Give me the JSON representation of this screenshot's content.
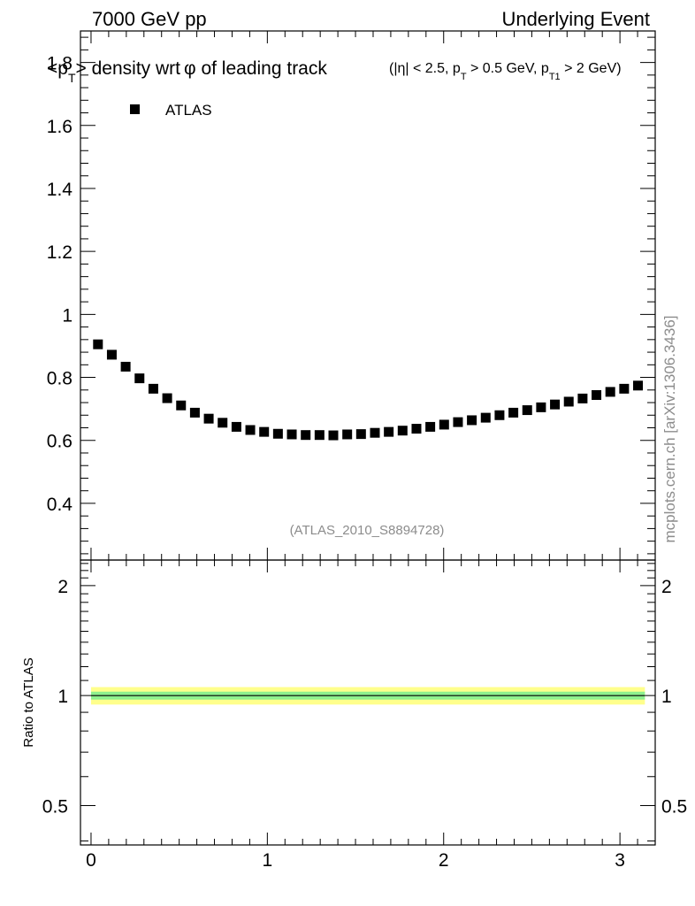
{
  "header": {
    "left": "7000 GeV pp",
    "right": "Underlying Event"
  },
  "plot_title": {
    "main_prefix": "<p",
    "main_sub": "T",
    "main_suffix": "> density wrt",
    "phi": "φ",
    "main_tail": " of leading track",
    "cuts_a": "(|η| < 2.5, p",
    "cuts_sub1": "T",
    "cuts_b": " > 0.5 GeV, p",
    "cuts_sub2": "T1",
    "cuts_c": " > 2 GeV)"
  },
  "analysis_id": "(ATLAS_2010_S8894728)",
  "side_label": "mcplots.cern.ch [arXiv:1306.3436]",
  "ratio_ylabel": "Ratio to ATLAS",
  "colors": {
    "marker": "#000000",
    "band_inner": "#8ef08e",
    "band_outer": "#ffff8c",
    "frame": "#000000"
  },
  "chart_data": [
    {
      "type": "scatter",
      "panel": "main",
      "xlim": [
        -0.06,
        3.2
      ],
      "ylim": [
        0.22,
        1.9
      ],
      "yticks": [
        0.4,
        0.6,
        0.8,
        1,
        1.2,
        1.4,
        1.6,
        1.8
      ],
      "ytick_labels": [
        "0.4",
        "0.6",
        "0.8",
        "1",
        "1.2",
        "1.4",
        "1.6",
        "1.8"
      ],
      "legend_position": "top-left",
      "series": [
        {
          "name": "ATLAS",
          "marker": "square",
          "x": [
            0.0393,
            0.1178,
            0.1963,
            0.2749,
            0.3534,
            0.432,
            0.5105,
            0.589,
            0.6676,
            0.7461,
            0.8247,
            0.9032,
            0.9817,
            1.0603,
            1.1388,
            1.2174,
            1.2959,
            1.3744,
            1.453,
            1.5315,
            1.6101,
            1.6886,
            1.7671,
            1.8457,
            1.9242,
            2.0028,
            2.0813,
            2.1598,
            2.2384,
            2.3169,
            2.3955,
            2.474,
            2.5525,
            2.6311,
            2.7096,
            2.7882,
            2.8667,
            2.9452,
            3.0238,
            3.1023
          ],
          "y": [
            0.905,
            0.872,
            0.834,
            0.797,
            0.764,
            0.734,
            0.711,
            0.688,
            0.669,
            0.656,
            0.643,
            0.633,
            0.627,
            0.621,
            0.619,
            0.617,
            0.617,
            0.616,
            0.619,
            0.62,
            0.624,
            0.627,
            0.631,
            0.637,
            0.643,
            0.65,
            0.658,
            0.664,
            0.672,
            0.68,
            0.688,
            0.696,
            0.705,
            0.714,
            0.723,
            0.733,
            0.744,
            0.754,
            0.764,
            0.774
          ]
        }
      ]
    },
    {
      "type": "line",
      "panel": "ratio",
      "ylabel": "Ratio to ATLAS",
      "xlim": [
        -0.06,
        3.2
      ],
      "ylim": [
        0.39,
        2.35
      ],
      "log_y": true,
      "yticks": [
        0.5,
        1,
        2
      ],
      "ytick_labels": [
        "0.5",
        "1",
        "2"
      ],
      "xticks": [
        0,
        1,
        2,
        3
      ],
      "xtick_labels": [
        "0",
        "1",
        "2",
        "3"
      ],
      "series": [
        {
          "name": "",
          "x": [
            0.0,
            3.1416
          ],
          "y": [
            1.0,
            1.0
          ]
        }
      ],
      "bands": [
        {
          "level": "outer",
          "low": 0.945,
          "high": 1.055
        },
        {
          "level": "inner",
          "low": 0.975,
          "high": 1.025
        }
      ]
    }
  ]
}
